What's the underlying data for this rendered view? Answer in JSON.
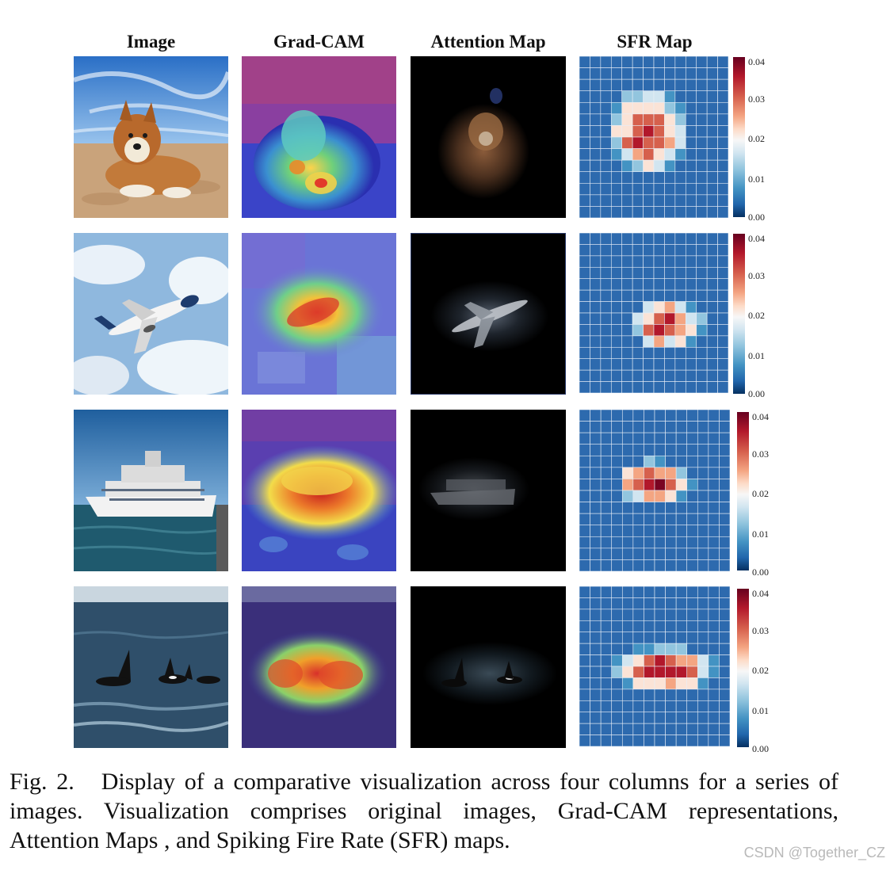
{
  "headers": [
    "Image",
    "Grad-CAM",
    "Attention Map",
    "SFR Map"
  ],
  "rows": [
    {
      "subject": "dog"
    },
    {
      "subject": "airplane"
    },
    {
      "subject": "ship"
    },
    {
      "subject": "orcas"
    }
  ],
  "colorbar": {
    "ticks": [
      "0.04",
      "0.03",
      "0.02",
      "0.01",
      "0.00"
    ],
    "colors": [
      "#67001f",
      "#b2182b",
      "#f7f7f7",
      "#2166ac",
      "#053061"
    ]
  },
  "caption": {
    "label": "Fig. 2.",
    "text": "Display of a comparative visualization across four columns for a series of images. Visualization comprises original images, Grad-CAM representations, Attention Maps , and Spiking Fire Rate (SFR) maps."
  },
  "watermark": "CSDN @Together_CZ"
}
